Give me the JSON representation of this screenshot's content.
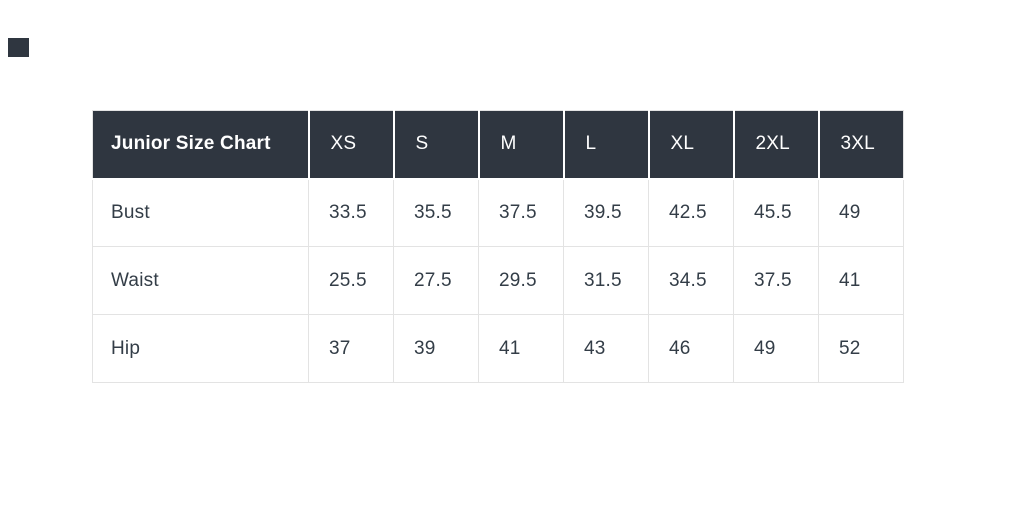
{
  "colors": {
    "header_background": "#2f3640",
    "header_text": "#ffffff",
    "body_text": "#333d47",
    "cell_border": "#e3e3e3",
    "page_background": "#ffffff",
    "corner_mark": "#2f3640"
  },
  "chart_data": {
    "type": "table",
    "title": "Junior Size Chart",
    "columns": [
      "XS",
      "S",
      "M",
      "L",
      "XL",
      "2XL",
      "3XL"
    ],
    "rows": [
      {
        "label": "Bust",
        "values": [
          "33.5",
          "35.5",
          "37.5",
          "39.5",
          "42.5",
          "45.5",
          "49"
        ]
      },
      {
        "label": "Waist",
        "values": [
          "25.5",
          "27.5",
          "29.5",
          "31.5",
          "34.5",
          "37.5",
          "41"
        ]
      },
      {
        "label": "Hip",
        "values": [
          "37",
          "39",
          "41",
          "43",
          "46",
          "49",
          "52"
        ]
      }
    ],
    "layout": {
      "header_style": "dark",
      "grid": true,
      "units": "inches (implied)"
    }
  }
}
